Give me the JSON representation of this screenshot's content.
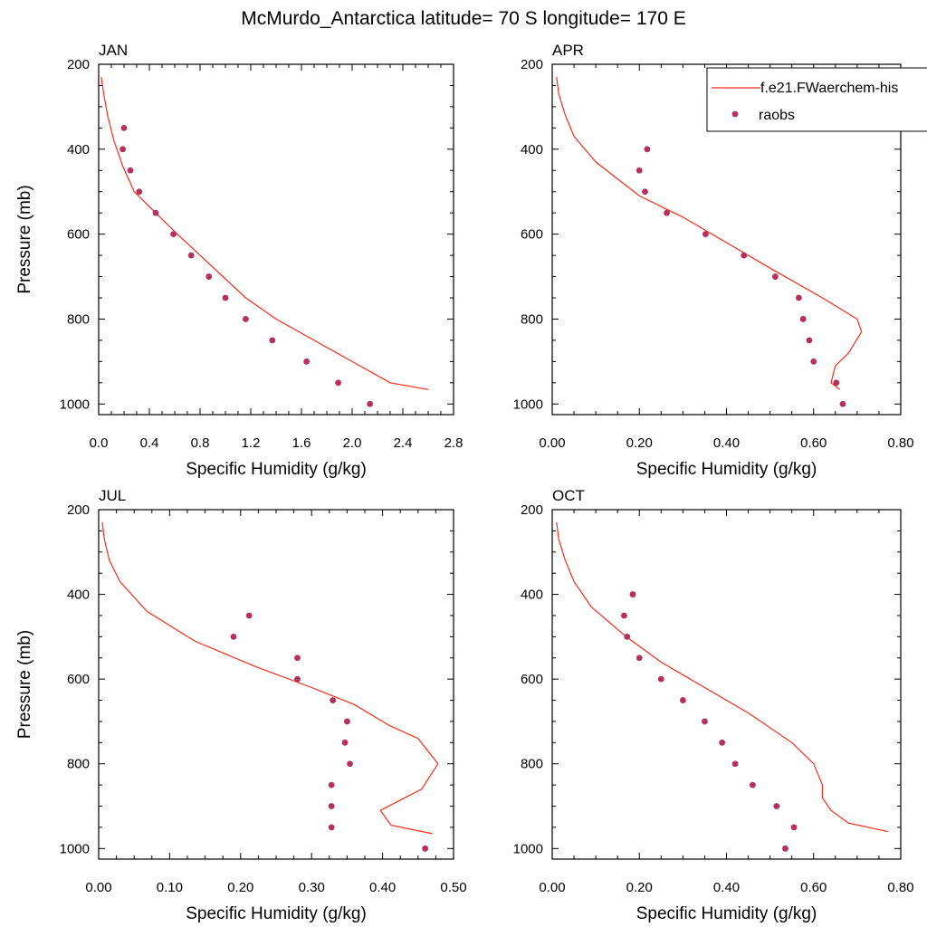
{
  "title": "McMurdo_Antarctica  latitude= 70 S longitude= 170 E",
  "legend": {
    "entries": [
      {
        "label": "f.e21.FWaerchem-his",
        "kind": "line",
        "color": "#ff2a1a"
      },
      {
        "label": "raobs",
        "kind": "marker",
        "color": "#b5305a"
      }
    ],
    "placement": "top-right of APR panel"
  },
  "colors": {
    "model": "#ff2a1a",
    "obs": "#b5305a"
  },
  "chart_data": [
    {
      "type": "line",
      "panel": "JAN",
      "xlabel": "Specific Humidity (g/kg)",
      "ylabel": "Pressure (mb)",
      "xlim": [
        0,
        2.8
      ],
      "ylim": [
        200,
        1025
      ],
      "y_reversed": true,
      "xticks": [
        0,
        0.4,
        0.8,
        1.2,
        1.6,
        2.0,
        2.4,
        2.8
      ],
      "xtick_labels": [
        "0.0",
        "0.4",
        "0.8",
        "1.2",
        "1.6",
        "2.0",
        "2.4",
        "2.8"
      ],
      "yticks": [
        200,
        400,
        600,
        800,
        1000
      ],
      "ytick_labels": [
        "200",
        "400",
        "600",
        "800",
        "1000"
      ],
      "series": [
        {
          "name": "f.e21.FWaerchem-his",
          "style": "line",
          "x": [
            0.02,
            0.04,
            0.07,
            0.12,
            0.19,
            0.28,
            0.45,
            0.62,
            0.8,
            0.98,
            1.16,
            1.4,
            1.7,
            2.0,
            2.3,
            2.6
          ],
          "y": [
            230,
            270,
            320,
            380,
            440,
            500,
            550,
            600,
            650,
            700,
            750,
            800,
            850,
            900,
            950,
            966
          ]
        },
        {
          "name": "raobs",
          "style": "marker",
          "x": [
            0.2,
            0.19,
            0.25,
            0.32,
            0.45,
            0.59,
            0.73,
            0.87,
            1.0,
            1.16,
            1.37,
            1.64,
            1.89,
            2.14
          ],
          "y": [
            350,
            400,
            450,
            500,
            550,
            600,
            650,
            700,
            750,
            800,
            850,
            900,
            950,
            1000
          ]
        }
      ]
    },
    {
      "type": "line",
      "panel": "APR",
      "xlabel": "Specific Humidity (g/kg)",
      "ylabel": "",
      "xlim": [
        0,
        0.8
      ],
      "ylim": [
        200,
        1025
      ],
      "y_reversed": true,
      "xticks": [
        0,
        0.2,
        0.4,
        0.6,
        0.8
      ],
      "xtick_labels": [
        "0.00",
        "0.20",
        "0.40",
        "0.60",
        "0.80"
      ],
      "yticks": [
        200,
        400,
        600,
        800,
        1000
      ],
      "ytick_labels": [
        "200",
        "400",
        "600",
        "800",
        "1000"
      ],
      "series": [
        {
          "name": "f.e21.FWaerchem-his",
          "style": "line",
          "x": [
            0.01,
            0.015,
            0.03,
            0.05,
            0.1,
            0.2,
            0.3,
            0.4,
            0.5,
            0.62,
            0.7,
            0.71,
            0.68,
            0.65,
            0.64,
            0.66
          ],
          "y": [
            230,
            270,
            320,
            370,
            430,
            510,
            560,
            620,
            680,
            750,
            800,
            830,
            880,
            910,
            950,
            966
          ]
        },
        {
          "name": "raobs",
          "style": "marker",
          "x": [
            0.218,
            0.2,
            0.213,
            0.263,
            0.352,
            0.44,
            0.512,
            0.566,
            0.576,
            0.59,
            0.6,
            0.652,
            0.667
          ],
          "y": [
            400,
            450,
            500,
            550,
            600,
            650,
            700,
            750,
            800,
            850,
            900,
            950,
            1000
          ]
        }
      ]
    },
    {
      "type": "line",
      "panel": "JUL",
      "xlabel": "Specific Humidity (g/kg)",
      "ylabel": "Pressure (mb)",
      "xlim": [
        0,
        0.5
      ],
      "ylim": [
        200,
        1025
      ],
      "y_reversed": true,
      "xticks": [
        0,
        0.1,
        0.2,
        0.3,
        0.4,
        0.5
      ],
      "xtick_labels": [
        "0.00",
        "0.10",
        "0.20",
        "0.30",
        "0.40",
        "0.50"
      ],
      "yticks": [
        200,
        400,
        600,
        800,
        1000
      ],
      "ytick_labels": [
        "200",
        "400",
        "600",
        "800",
        "1000"
      ],
      "series": [
        {
          "name": "f.e21.FWaerchem-his",
          "style": "line",
          "x": [
            0.005,
            0.008,
            0.015,
            0.03,
            0.068,
            0.135,
            0.22,
            0.3,
            0.36,
            0.41,
            0.45,
            0.478,
            0.455,
            0.42,
            0.397,
            0.412,
            0.47
          ],
          "y": [
            230,
            270,
            320,
            370,
            440,
            510,
            570,
            620,
            660,
            710,
            740,
            800,
            860,
            890,
            910,
            945,
            965
          ]
        },
        {
          "name": "raobs",
          "style": "marker",
          "x": [
            0.212,
            0.19,
            0.28,
            0.28,
            0.33,
            0.35,
            0.347,
            0.354,
            0.328,
            0.328,
            0.328,
            0.46
          ],
          "y": [
            450,
            500,
            550,
            600,
            650,
            700,
            750,
            800,
            850,
            900,
            950,
            1000
          ]
        }
      ]
    },
    {
      "type": "line",
      "panel": "OCT",
      "xlabel": "Specific Humidity (g/kg)",
      "ylabel": "",
      "xlim": [
        0,
        0.8
      ],
      "ylim": [
        200,
        1025
      ],
      "y_reversed": true,
      "xticks": [
        0,
        0.2,
        0.4,
        0.6,
        0.8
      ],
      "xtick_labels": [
        "0.00",
        "0.20",
        "0.40",
        "0.60",
        "0.80"
      ],
      "yticks": [
        200,
        400,
        600,
        800,
        1000
      ],
      "ytick_labels": [
        "200",
        "400",
        "600",
        "800",
        "1000"
      ],
      "series": [
        {
          "name": "f.e21.FWaerchem-his",
          "style": "line",
          "x": [
            0.01,
            0.015,
            0.03,
            0.05,
            0.09,
            0.17,
            0.25,
            0.35,
            0.45,
            0.55,
            0.6,
            0.62,
            0.62,
            0.64,
            0.68,
            0.77
          ],
          "y": [
            230,
            270,
            320,
            370,
            430,
            500,
            560,
            620,
            680,
            750,
            800,
            850,
            880,
            910,
            940,
            960
          ]
        },
        {
          "name": "raobs",
          "style": "marker",
          "x": [
            0.185,
            0.165,
            0.172,
            0.2,
            0.25,
            0.3,
            0.35,
            0.39,
            0.42,
            0.46,
            0.515,
            0.555,
            0.535
          ],
          "y": [
            400,
            450,
            500,
            550,
            600,
            650,
            700,
            750,
            800,
            850,
            900,
            950,
            1000
          ]
        }
      ]
    }
  ]
}
